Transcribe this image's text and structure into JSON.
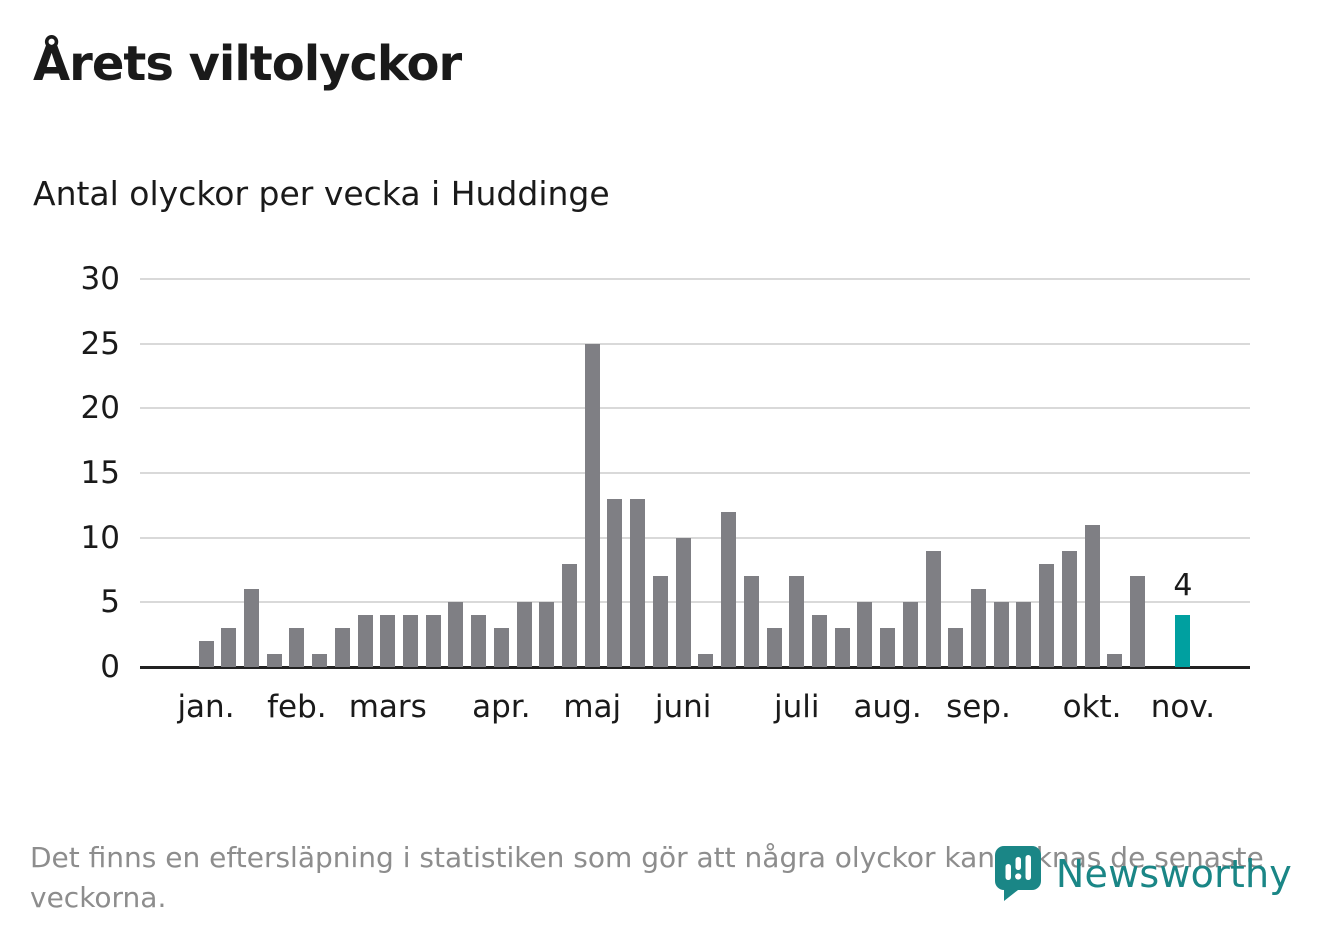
{
  "page": {
    "title": "Årets viltolyckor",
    "subtitle": "Antal olyckor per vecka i Huddinge",
    "footer": "Det finns en eftersläpning i statistiken som gör att några olyckor kan saknas de senaste veckorna.",
    "brand": "Newsworthy"
  },
  "colors": {
    "bar": "#7f7f84",
    "highlight": "#00a0a0",
    "grid": "#d9d9d9",
    "axis": "#222222",
    "text": "#1a1a1a",
    "footer_text": "#8d8d8d",
    "brand": "#1a8686"
  },
  "chart_data": {
    "type": "bar",
    "title": "Antal olyckor per vecka i Huddinge",
    "xlabel": "",
    "ylabel": "",
    "ylim": [
      0,
      30
    ],
    "yticks": [
      0,
      5,
      10,
      15,
      20,
      25,
      30
    ],
    "grid": true,
    "legend": "none",
    "values": [
      2,
      3,
      6,
      1,
      3,
      1,
      3,
      4,
      4,
      4,
      4,
      5,
      4,
      3,
      5,
      5,
      8,
      25,
      13,
      13,
      7,
      10,
      1,
      12,
      7,
      3,
      7,
      4,
      3,
      5,
      3,
      5,
      9,
      3,
      6,
      5,
      5,
      8,
      9,
      11,
      1,
      7,
      0,
      4
    ],
    "months": [
      {
        "label": "jan.",
        "week_index": 0
      },
      {
        "label": "feb.",
        "week_index": 4
      },
      {
        "label": "mars",
        "week_index": 8
      },
      {
        "label": "apr.",
        "week_index": 13
      },
      {
        "label": "maj",
        "week_index": 17
      },
      {
        "label": "juni",
        "week_index": 21
      },
      {
        "label": "juli",
        "week_index": 26
      },
      {
        "label": "aug.",
        "week_index": 30
      },
      {
        "label": "sep.",
        "week_index": 34
      },
      {
        "label": "okt.",
        "week_index": 39
      },
      {
        "label": "nov.",
        "week_index": 43
      }
    ],
    "highlight_index": 43,
    "highlight_label": "4"
  }
}
